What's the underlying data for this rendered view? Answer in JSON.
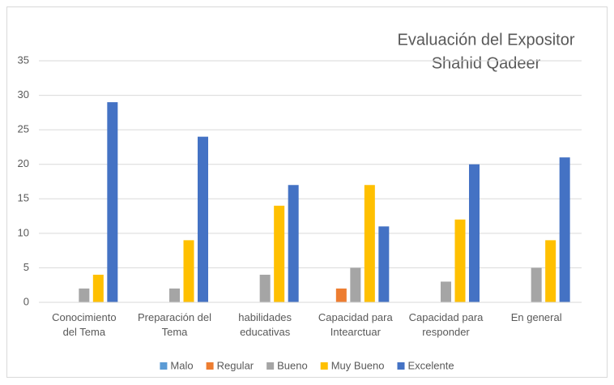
{
  "chart_data": {
    "type": "bar",
    "title": [
      "Evaluación del Expositor",
      "Shahid Qadeer"
    ],
    "categories": [
      [
        "Conocimiento",
        "del Tema"
      ],
      [
        "Preparación del",
        "Tema"
      ],
      [
        "habilidades",
        "educativas"
      ],
      [
        "Capacidad para",
        "Intearctuar"
      ],
      [
        "Capacidad para",
        "responder"
      ],
      [
        "En general"
      ]
    ],
    "series": [
      {
        "name": "Malo",
        "color": "#5b9bd5",
        "values": [
          0,
          0,
          0,
          0,
          0,
          0
        ]
      },
      {
        "name": "Regular",
        "color": "#ed7d31",
        "values": [
          0,
          0,
          0,
          2,
          0,
          0
        ]
      },
      {
        "name": "Bueno",
        "color": "#a5a5a5",
        "values": [
          2,
          2,
          4,
          5,
          3,
          5
        ]
      },
      {
        "name": "Muy Bueno",
        "color": "#ffc000",
        "values": [
          4,
          9,
          14,
          17,
          12,
          9
        ]
      },
      {
        "name": "Excelente",
        "color": "#4472c4",
        "values": [
          29,
          24,
          17,
          11,
          20,
          21
        ]
      }
    ],
    "ylim": [
      0,
      35
    ],
    "yticks": [
      0,
      5,
      10,
      15,
      20,
      25,
      30,
      35
    ],
    "grid": true,
    "legend": "bottom"
  }
}
